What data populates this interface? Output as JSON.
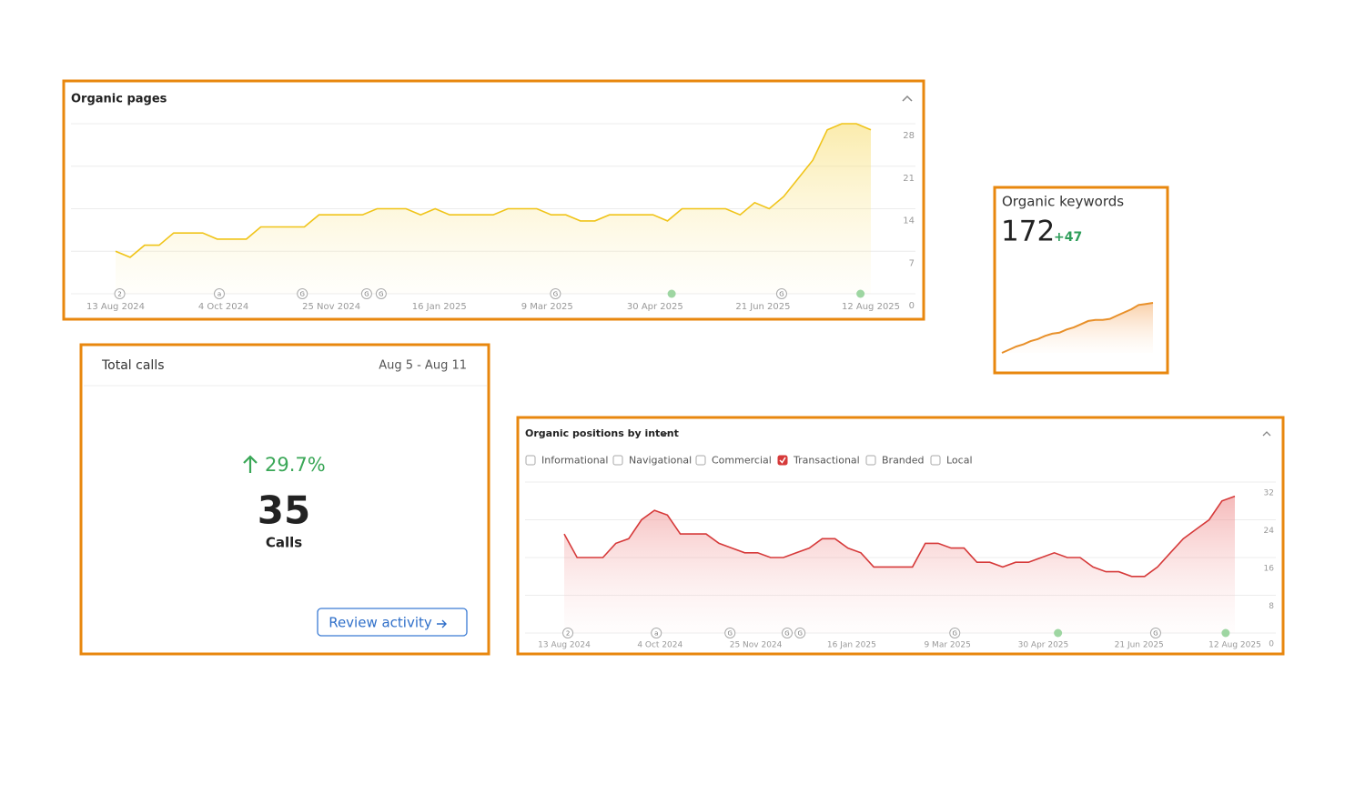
{
  "chart_data": [
    {
      "type": "line",
      "title": "Organic pages",
      "x": [
        0,
        7,
        14,
        21,
        28,
        35,
        42,
        49,
        56,
        63,
        70,
        77,
        84,
        91,
        98,
        105,
        112,
        119,
        126,
        133,
        140,
        147,
        154,
        161,
        168,
        175,
        182,
        189,
        196,
        203,
        210,
        217,
        224,
        231,
        238,
        245,
        252,
        259,
        266,
        273,
        280,
        287,
        294,
        301,
        308,
        315,
        322,
        329,
        336,
        343,
        350,
        357,
        364
      ],
      "values": [
        7,
        6,
        8,
        8,
        10,
        10,
        10,
        9,
        9,
        9,
        11,
        11,
        11,
        11,
        13,
        13,
        13,
        13,
        14,
        14,
        14,
        13,
        14,
        13,
        13,
        13,
        13,
        14,
        14,
        14,
        13,
        13,
        12,
        12,
        13,
        13,
        13,
        13,
        12,
        14,
        14,
        14,
        14,
        13,
        15,
        14,
        16,
        19,
        22,
        27,
        28,
        28,
        27
      ],
      "color": "#f0c419",
      "xlim": [
        0,
        364
      ],
      "xticks": [
        {
          "value": 0,
          "label": "13 Aug 2024"
        },
        {
          "value": 52,
          "label": "4 Oct 2024"
        },
        {
          "value": 104,
          "label": "25 Nov 2024"
        },
        {
          "value": 156,
          "label": "16 Jan 2025"
        },
        {
          "value": 208,
          "label": "9 Mar 2025"
        },
        {
          "value": 260,
          "label": "30 Apr 2025"
        },
        {
          "value": 312,
          "label": "21 Jun 2025"
        },
        {
          "value": 364,
          "label": "12 Aug 2025"
        }
      ],
      "ylim": [
        0,
        28
      ],
      "yticks": [
        0,
        7,
        14,
        21,
        28
      ],
      "grid": true,
      "markers": [
        {
          "x": 2,
          "label": "2"
        },
        {
          "x": 50,
          "label": "a"
        },
        {
          "x": 90,
          "label": "G"
        },
        {
          "x": 121,
          "label": "G"
        },
        {
          "x": 128,
          "label": "G"
        },
        {
          "x": 212,
          "label": "G"
        },
        {
          "x": 268,
          "color": "#9ed6a2"
        },
        {
          "x": 321,
          "label": "G"
        },
        {
          "x": 359,
          "color": "#9ed6a2"
        }
      ]
    },
    {
      "type": "line",
      "title": "Organic positions by intent",
      "filters": [
        {
          "label": "Informational",
          "checked": false
        },
        {
          "label": "Navigational",
          "checked": false
        },
        {
          "label": "Commercial",
          "checked": false
        },
        {
          "label": "Transactional",
          "checked": true
        },
        {
          "label": "Branded",
          "checked": false
        },
        {
          "label": "Local",
          "checked": false
        }
      ],
      "x": [
        0,
        7,
        14,
        21,
        28,
        35,
        42,
        49,
        56,
        63,
        70,
        77,
        84,
        91,
        98,
        105,
        112,
        119,
        126,
        133,
        140,
        147,
        154,
        161,
        168,
        175,
        182,
        189,
        196,
        203,
        210,
        217,
        224,
        231,
        238,
        245,
        252,
        259,
        266,
        273,
        280,
        287,
        294,
        301,
        308,
        315,
        322,
        329,
        336,
        343,
        350,
        357,
        364
      ],
      "values": [
        21,
        16,
        16,
        16,
        19,
        20,
        24,
        26,
        25,
        21,
        21,
        21,
        19,
        18,
        17,
        17,
        16,
        16,
        17,
        18,
        20,
        20,
        18,
        17,
        14,
        14,
        14,
        14,
        19,
        19,
        18,
        18,
        15,
        15,
        14,
        15,
        15,
        16,
        17,
        16,
        16,
        14,
        13,
        13,
        12,
        12,
        14,
        17,
        20,
        22,
        24,
        28,
        29
      ],
      "color": "#d63a3a",
      "xlim": [
        0,
        364
      ],
      "xticks": [
        {
          "value": 0,
          "label": "13 Aug 2024"
        },
        {
          "value": 52,
          "label": "4 Oct 2024"
        },
        {
          "value": 104,
          "label": "25 Nov 2024"
        },
        {
          "value": 156,
          "label": "16 Jan 2025"
        },
        {
          "value": 208,
          "label": "9 Mar 2025"
        },
        {
          "value": 260,
          "label": "30 Apr 2025"
        },
        {
          "value": 312,
          "label": "21 Jun 2025"
        },
        {
          "value": 364,
          "label": "12 Aug 2025"
        }
      ],
      "ylim": [
        0,
        32
      ],
      "yticks": [
        0,
        8,
        16,
        24,
        32
      ],
      "grid": true,
      "markers": [
        {
          "x": 2,
          "label": "2"
        },
        {
          "x": 50,
          "label": "a"
        },
        {
          "x": 90,
          "label": "G"
        },
        {
          "x": 121,
          "label": "G"
        },
        {
          "x": 128,
          "label": "G"
        },
        {
          "x": 212,
          "label": "G"
        },
        {
          "x": 268,
          "color": "#9ed6a2"
        },
        {
          "x": 321,
          "label": "G"
        },
        {
          "x": 359,
          "color": "#9ed6a2"
        }
      ]
    },
    {
      "type": "sparkline",
      "title": "Organic keywords",
      "total": 172,
      "change": "+47",
      "values": [
        125,
        128,
        131,
        133,
        136,
        138,
        141,
        143,
        144,
        147,
        149,
        152,
        155,
        156,
        156,
        157,
        160,
        163,
        166,
        170,
        171,
        172
      ],
      "color": "#e8902a"
    }
  ],
  "total_calls": {
    "title": "Total calls",
    "period": "Aug 5 - Aug 11",
    "change": "29.7%",
    "value": 35,
    "unit": "Calls",
    "button": "Review activity"
  }
}
